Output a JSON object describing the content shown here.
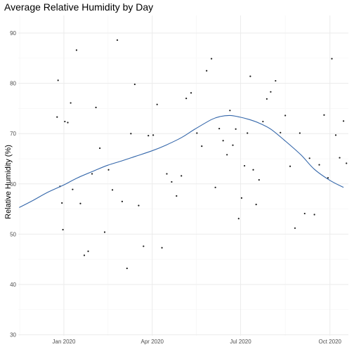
{
  "chart_data": {
    "type": "scatter",
    "title": "Average Relative Humidity by Day",
    "xlabel": "",
    "ylabel": "Relative Humidity (%)",
    "x_range": [
      "2019-11-15",
      "2020-10-20"
    ],
    "ylim": [
      29.8,
      93.5
    ],
    "y_ticks": [
      30,
      40,
      50,
      60,
      70,
      80,
      90
    ],
    "x_ticks": [
      {
        "date": "2020-01-01",
        "label": "Jan 2020"
      },
      {
        "date": "2020-04-01",
        "label": "Apr 2020"
      },
      {
        "date": "2020-07-01",
        "label": "Jul 2020"
      },
      {
        "date": "2020-10-01",
        "label": "Oct 2020"
      }
    ],
    "grid": true,
    "colors": {
      "points": "#1a1a1a",
      "smooth_line": "#3366aa",
      "grid_major": "#ebebeb",
      "grid_minor": "#f5f5f5"
    },
    "series": [
      {
        "kind": "points",
        "x": [
          "2019-12-25",
          "2019-12-26",
          "2019-12-28",
          "2019-12-30",
          "2019-12-31",
          "2020-01-02",
          "2020-01-05",
          "2020-01-08",
          "2020-01-10",
          "2020-01-14",
          "2020-01-18",
          "2020-01-22",
          "2020-01-26",
          "2020-01-30",
          "2020-02-03",
          "2020-02-07",
          "2020-02-12",
          "2020-02-16",
          "2020-02-20",
          "2020-02-25",
          "2020-03-01",
          "2020-03-06",
          "2020-03-10",
          "2020-03-14",
          "2020-03-18",
          "2020-03-23",
          "2020-03-28",
          "2020-04-02",
          "2020-04-06",
          "2020-04-11",
          "2020-04-16",
          "2020-04-21",
          "2020-04-26",
          "2020-05-01",
          "2020-05-06",
          "2020-05-11",
          "2020-05-17",
          "2020-05-22",
          "2020-05-27",
          "2020-06-01",
          "2020-06-05",
          "2020-06-09",
          "2020-06-13",
          "2020-06-17",
          "2020-06-20",
          "2020-06-23",
          "2020-06-26",
          "2020-06-29",
          "2020-07-02",
          "2020-07-05",
          "2020-07-08",
          "2020-07-11",
          "2020-07-14",
          "2020-07-17",
          "2020-07-20",
          "2020-07-24",
          "2020-07-28",
          "2020-08-01",
          "2020-08-06",
          "2020-08-11",
          "2020-08-16",
          "2020-08-21",
          "2020-08-26",
          "2020-08-31",
          "2020-09-05",
          "2020-09-10",
          "2020-09-15",
          "2020-09-20",
          "2020-09-25",
          "2020-09-29",
          "2020-10-03",
          "2020-10-07",
          "2020-10-11",
          "2020-10-15",
          "2020-10-18"
        ],
        "y": [
          73.3,
          80.6,
          59.5,
          56.2,
          50.9,
          72.4,
          72.2,
          76.1,
          58.9,
          86.6,
          56.1,
          45.8,
          46.6,
          62.0,
          75.2,
          67.1,
          50.4,
          62.8,
          58.8,
          88.6,
          56.5,
          43.2,
          70.0,
          79.8,
          55.7,
          47.6,
          69.6,
          69.7,
          75.8,
          47.3,
          62.0,
          60.4,
          57.6,
          61.6,
          77.0,
          78.1,
          70.1,
          67.5,
          82.5,
          84.9,
          59.3,
          71.0,
          68.6,
          65.8,
          74.6,
          67.7,
          70.9,
          53.1,
          57.2,
          63.6,
          70.1,
          81.4,
          62.8,
          55.9,
          60.8,
          72.4,
          76.9,
          78.3,
          80.5,
          70.2,
          73.6,
          63.5,
          51.2,
          70.1,
          54.1,
          65.1,
          53.9,
          63.8,
          73.7,
          61.2,
          84.9,
          69.7,
          65.2,
          72.5,
          64.1
        ]
      },
      {
        "kind": "smooth",
        "x": [
          "2019-11-16",
          "2019-12-01",
          "2019-12-15",
          "2020-01-01",
          "2020-01-15",
          "2020-02-01",
          "2020-02-15",
          "2020-03-01",
          "2020-03-15",
          "2020-04-01",
          "2020-04-15",
          "2020-05-01",
          "2020-05-15",
          "2020-06-01",
          "2020-06-10",
          "2020-06-20",
          "2020-06-30",
          "2020-07-10",
          "2020-07-20",
          "2020-08-01",
          "2020-08-15",
          "2020-09-01",
          "2020-09-15",
          "2020-10-01",
          "2020-10-15"
        ],
        "y": [
          55.3,
          56.8,
          58.3,
          59.8,
          61.2,
          62.6,
          63.7,
          64.6,
          65.5,
          66.6,
          67.7,
          69.2,
          70.9,
          72.8,
          73.4,
          73.6,
          73.3,
          72.8,
          72.1,
          70.9,
          68.7,
          65.8,
          62.9,
          60.7,
          59.3
        ]
      }
    ]
  }
}
